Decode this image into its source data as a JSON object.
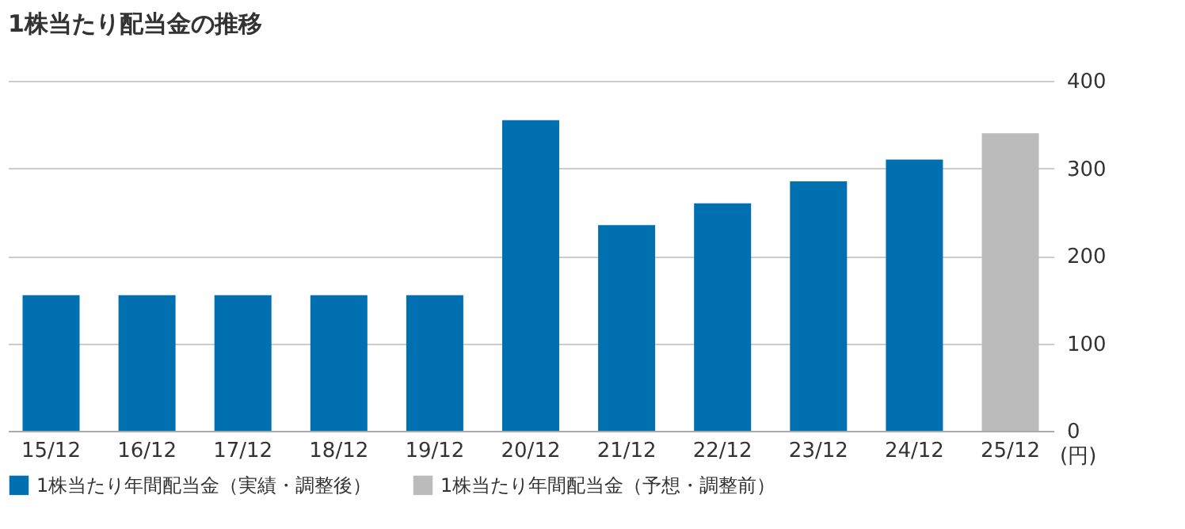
{
  "chart_data": {
    "type": "bar",
    "title": "1株当たり配当金の推移",
    "ylabel": "(円)",
    "categories": [
      "15/12",
      "16/12",
      "17/12",
      "18/12",
      "19/12",
      "20/12",
      "21/12",
      "22/12",
      "23/12",
      "24/12",
      "25/12"
    ],
    "series": [
      {
        "name": "1株当たり年間配当金（実績・調整後）",
        "color": "#0070b0",
        "values": [
          155,
          155,
          155,
          155,
          155,
          355,
          235,
          260,
          285,
          310,
          null
        ]
      },
      {
        "name": "1株当たり年間配当金（予想・調整前）",
        "color": "#bbbbbb",
        "values": [
          null,
          null,
          null,
          null,
          null,
          null,
          null,
          null,
          null,
          null,
          340
        ]
      }
    ],
    "ylim": [
      0,
      400
    ],
    "yticks": [
      0,
      100,
      200,
      300,
      400
    ],
    "grid": "y",
    "legend": "bottom"
  }
}
